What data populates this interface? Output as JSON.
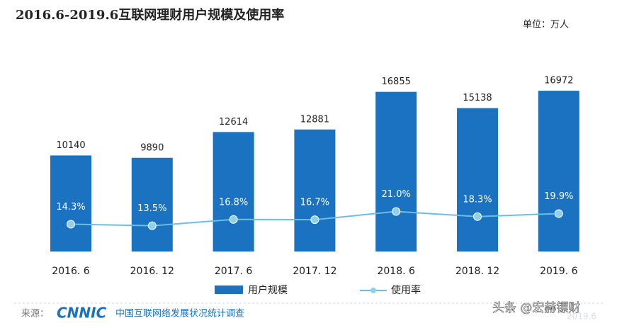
{
  "chart_data": {
    "type": "bar",
    "title": "2016.6-2019.6互联网理财用户规模及使用率",
    "unit": "单位：万人",
    "categories": [
      "2016. 6",
      "2016. 12",
      "2017. 6",
      "2017. 12",
      "2018. 6",
      "2018. 12",
      "2019. 6"
    ],
    "series": [
      {
        "name": "用户规模",
        "type": "bar",
        "color": "#1a72c0",
        "values": [
          10140,
          9890,
          12614,
          12881,
          16855,
          15138,
          16972
        ]
      },
      {
        "name": "使用率",
        "type": "line",
        "color": "#6cbde6",
        "values": [
          14.3,
          13.5,
          16.8,
          16.7,
          21.0,
          18.3,
          19.9
        ],
        "value_labels": [
          "14.3%",
          "13.5%",
          "16.8%",
          "16.7%",
          "21.0%",
          "18.3%",
          "19.9%"
        ]
      }
    ]
  },
  "footer": {
    "source_label": "来源：",
    "logo": "CNNIC",
    "source_text": "中国互联网络发展状况统计调查",
    "date": "2019.6",
    "watermark": "头条 @宏赫镖财"
  }
}
